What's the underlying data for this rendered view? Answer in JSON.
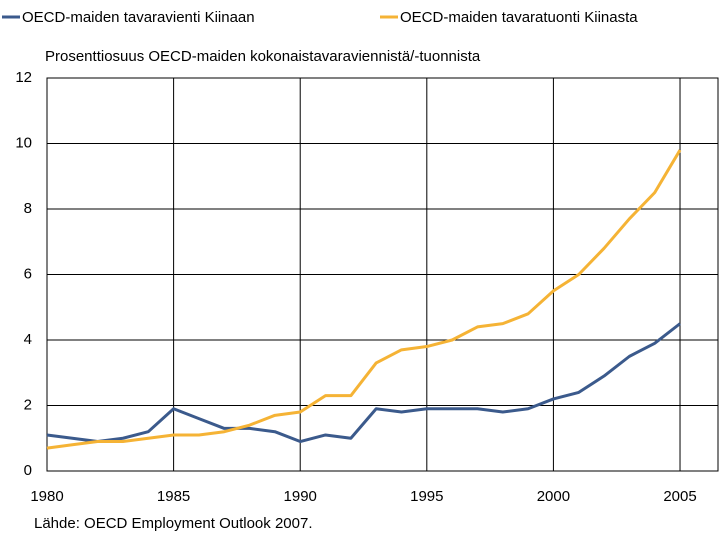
{
  "chart_data": {
    "type": "line",
    "subtitle": "Prosenttiosuus OECD-maiden kokonaistavaraviennistä/-tuonnista",
    "source": "Lähde: OECD Employment Outlook 2007.",
    "x": [
      1980,
      1981,
      1982,
      1983,
      1984,
      1985,
      1986,
      1987,
      1988,
      1989,
      1990,
      1991,
      1992,
      1993,
      1994,
      1995,
      1996,
      1997,
      1998,
      1999,
      2000,
      2001,
      2002,
      2003,
      2004,
      2005
    ],
    "series": [
      {
        "name": "OECD-maiden tavaravienti Kiinaan",
        "color": "#3b5a8c",
        "values": [
          1.1,
          1.0,
          0.9,
          1.0,
          1.2,
          1.9,
          1.6,
          1.3,
          1.3,
          1.2,
          0.9,
          1.1,
          1.0,
          1.9,
          1.8,
          1.9,
          1.9,
          1.9,
          1.8,
          1.9,
          2.2,
          2.4,
          2.9,
          3.5,
          3.9,
          4.5
        ]
      },
      {
        "name": "OECD-maiden tavaratuonti Kiinasta",
        "color": "#f5b335",
        "values": [
          0.7,
          0.8,
          0.9,
          0.9,
          1.0,
          1.1,
          1.1,
          1.2,
          1.4,
          1.7,
          1.8,
          2.3,
          2.3,
          3.3,
          3.7,
          3.8,
          4.0,
          4.4,
          4.5,
          4.8,
          5.5,
          6.0,
          6.8,
          7.7,
          8.5,
          9.8
        ]
      }
    ],
    "xlim": [
      1980,
      2006.5
    ],
    "xticks": [
      1980,
      1985,
      1990,
      1995,
      2000,
      2005
    ],
    "ylim": [
      0,
      12
    ],
    "yticks": [
      0,
      2,
      4,
      6,
      8,
      10,
      12
    ],
    "grid": true,
    "legend": "top"
  }
}
